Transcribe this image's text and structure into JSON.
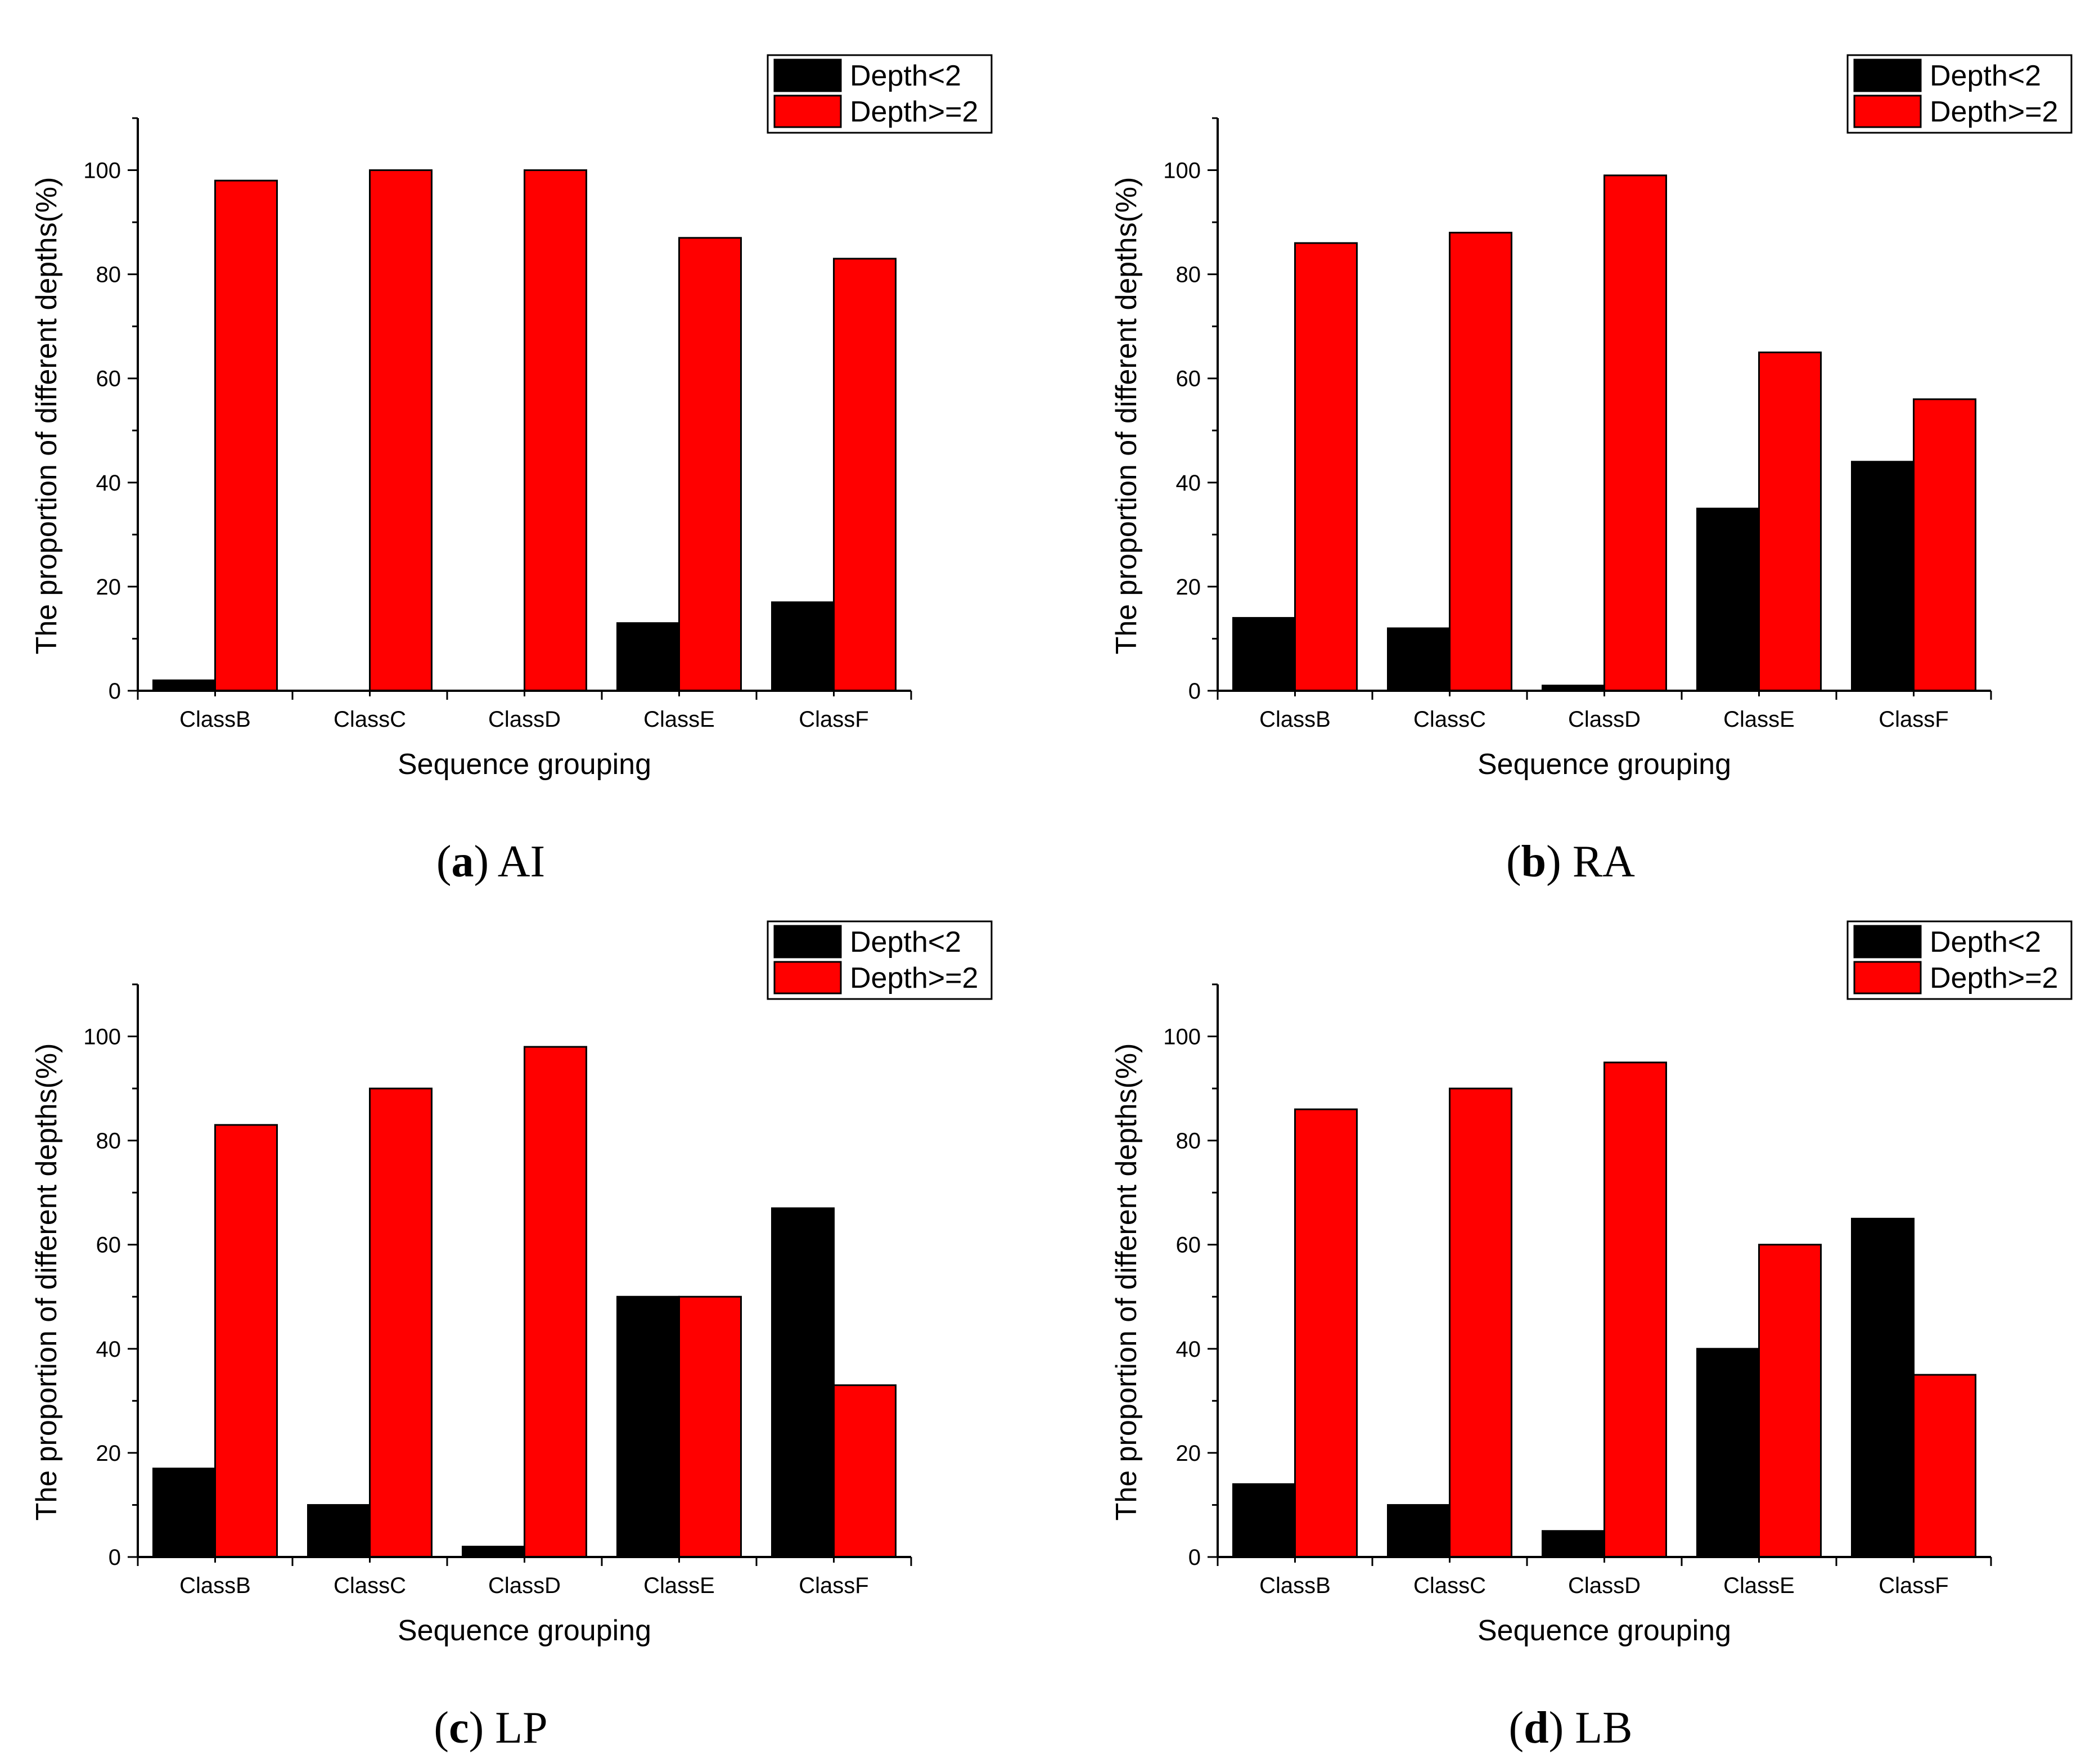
{
  "colors": {
    "depth_lt2": "#000000",
    "depth_ge2": "#ff0000",
    "axis": "#000000"
  },
  "chart_data": [
    {
      "type": "bar",
      "caption_letter": "a",
      "caption_text": "AI",
      "categories": [
        "ClassB",
        "ClassC",
        "ClassD",
        "ClassE",
        "ClassF"
      ],
      "series": [
        {
          "name": "Depth<2",
          "values": [
            2,
            0,
            0,
            13,
            17
          ]
        },
        {
          "name": "Depth>=2",
          "values": [
            98,
            100,
            100,
            87,
            83
          ]
        }
      ],
      "xlabel": "Sequence grouping",
      "ylabel": "The proportion of different depths(%)",
      "ylim": [
        0,
        110
      ],
      "yticks": [
        0,
        20,
        40,
        60,
        80,
        100
      ],
      "legend_position": "top-right"
    },
    {
      "type": "bar",
      "caption_letter": "b",
      "caption_text": "RA",
      "categories": [
        "ClassB",
        "ClassC",
        "ClassD",
        "ClassE",
        "ClassF"
      ],
      "series": [
        {
          "name": "Depth<2",
          "values": [
            14,
            12,
            1,
            35,
            44
          ]
        },
        {
          "name": "Depth>=2",
          "values": [
            86,
            88,
            99,
            65,
            56
          ]
        }
      ],
      "xlabel": "Sequence grouping",
      "ylabel": "The proportion of different depths(%)",
      "ylim": [
        0,
        110
      ],
      "yticks": [
        0,
        20,
        40,
        60,
        80,
        100
      ],
      "legend_position": "top-right"
    },
    {
      "type": "bar",
      "caption_letter": "c",
      "caption_text": "LP",
      "categories": [
        "ClassB",
        "ClassC",
        "ClassD",
        "ClassE",
        "ClassF"
      ],
      "series": [
        {
          "name": "Depth<2",
          "values": [
            17,
            10,
            2,
            50,
            67
          ]
        },
        {
          "name": "Depth>=2",
          "values": [
            83,
            90,
            98,
            50,
            33
          ]
        }
      ],
      "xlabel": "Sequence grouping",
      "ylabel": "The proportion of different depths(%)",
      "ylim": [
        0,
        110
      ],
      "yticks": [
        0,
        20,
        40,
        60,
        80,
        100
      ],
      "legend_position": "top-right"
    },
    {
      "type": "bar",
      "caption_letter": "d",
      "caption_text": "LB",
      "categories": [
        "ClassB",
        "ClassC",
        "ClassD",
        "ClassE",
        "ClassF"
      ],
      "series": [
        {
          "name": "Depth<2",
          "values": [
            14,
            10,
            5,
            40,
            65
          ]
        },
        {
          "name": "Depth>=2",
          "values": [
            86,
            90,
            95,
            60,
            35
          ]
        }
      ],
      "xlabel": "Sequence grouping",
      "ylabel": "The proportion of different depths(%)",
      "ylim": [
        0,
        110
      ],
      "yticks": [
        0,
        20,
        40,
        60,
        80,
        100
      ],
      "legend_position": "top-right"
    }
  ]
}
